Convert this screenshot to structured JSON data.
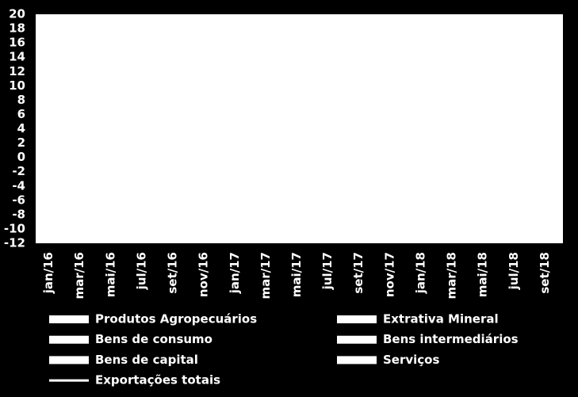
{
  "chart_data": {
    "type": "bar",
    "categories": [
      "jan/16",
      "mar/16",
      "mai/16",
      "jul/16",
      "set/16",
      "nov/16",
      "jan/17",
      "mar/17",
      "mai/17",
      "jul/17",
      "set/17",
      "nov/17",
      "jan/18",
      "mar/18",
      "mai/18",
      "jul/18",
      "set/18"
    ],
    "series": [
      {
        "name": "Produtos Agropecuários",
        "color": "#ffffff",
        "values": [
          null,
          null,
          null,
          null,
          null,
          null,
          null,
          null,
          null,
          null,
          null,
          null,
          null,
          null,
          null,
          null,
          null
        ]
      },
      {
        "name": "Extrativa Mineral",
        "color": "#ffffff",
        "values": [
          null,
          null,
          null,
          null,
          null,
          null,
          null,
          null,
          null,
          null,
          null,
          null,
          null,
          null,
          null,
          null,
          null
        ]
      },
      {
        "name": "Bens de consumo",
        "color": "#ffffff",
        "values": [
          null,
          null,
          null,
          null,
          null,
          null,
          null,
          null,
          null,
          null,
          null,
          null,
          null,
          null,
          null,
          null,
          null
        ]
      },
      {
        "name": "Bens intermediários",
        "color": "#ffffff",
        "values": [
          null,
          null,
          null,
          null,
          null,
          null,
          null,
          null,
          null,
          null,
          null,
          null,
          null,
          null,
          null,
          null,
          null
        ]
      },
      {
        "name": "Bens de capital",
        "color": "#ffffff",
        "values": [
          null,
          null,
          null,
          null,
          null,
          null,
          null,
          null,
          null,
          null,
          null,
          null,
          null,
          null,
          null,
          null,
          null
        ]
      },
      {
        "name": "Serviços",
        "color": "#ffffff",
        "values": [
          null,
          null,
          null,
          null,
          null,
          null,
          null,
          null,
          null,
          null,
          null,
          null,
          null,
          null,
          null,
          null,
          null
        ]
      },
      {
        "name": "Exportações totais",
        "color": "#ffffff",
        "kind": "line",
        "values": [
          null,
          null,
          null,
          null,
          null,
          null,
          null,
          null,
          null,
          null,
          null,
          null,
          null,
          null,
          null,
          null,
          null
        ]
      }
    ],
    "ylim": [
      -12,
      20
    ],
    "yticks": [
      -12,
      -10,
      -8,
      -6,
      -4,
      -2,
      0,
      2,
      4,
      6,
      8,
      10,
      12,
      14,
      16,
      18,
      20
    ],
    "grid": false
  }
}
